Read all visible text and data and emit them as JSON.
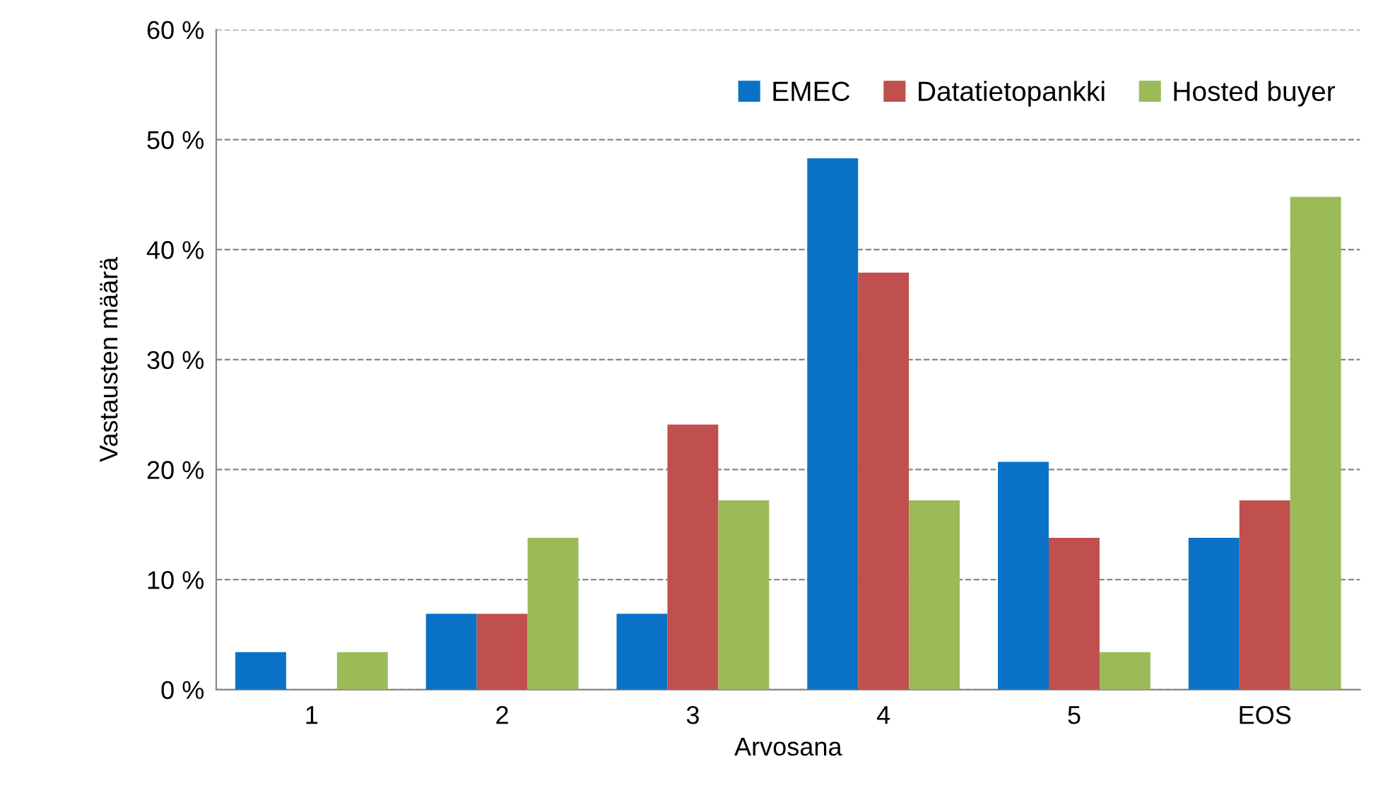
{
  "chart_data": {
    "type": "bar",
    "xlabel": "Arvosana",
    "ylabel": "Vastausten määrä",
    "categories": [
      "1",
      "2",
      "3",
      "4",
      "5",
      "EOS"
    ],
    "series": [
      {
        "name": "EMEC",
        "color": "#0a72c6",
        "values": [
          3.4,
          6.9,
          6.9,
          48.3,
          20.7,
          13.8
        ]
      },
      {
        "name": "Datatietopankki",
        "color": "#c0504d",
        "values": [
          0,
          6.9,
          24.1,
          37.9,
          13.8,
          17.2
        ]
      },
      {
        "name": "Hosted buyer",
        "color": "#9bbb59",
        "values": [
          3.4,
          13.8,
          17.2,
          17.2,
          3.4,
          44.8
        ]
      }
    ],
    "ylim": [
      0,
      60
    ],
    "yticks": [
      {
        "value": 0,
        "label": "0 %"
      },
      {
        "value": 10,
        "label": "10 %"
      },
      {
        "value": 20,
        "label": "20 %"
      },
      {
        "value": 30,
        "label": "30 %"
      },
      {
        "value": 40,
        "label": "40 %"
      },
      {
        "value": 50,
        "label": "50 %"
      },
      {
        "value": 60,
        "label": "60 %"
      }
    ],
    "grid": "y",
    "legend": "top right"
  }
}
